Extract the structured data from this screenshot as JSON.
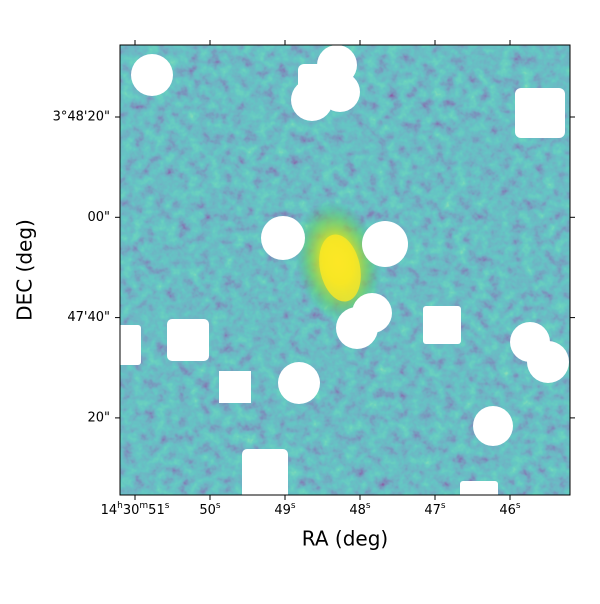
{
  "chart_data": {
    "type": "image",
    "xlabel": "RA (deg)",
    "ylabel": "DEC (deg)",
    "xtick_labels": [
      "14h30m51s",
      "50s",
      "49s",
      "48s",
      "47s",
      "46s"
    ],
    "ytick_labels": [
      "3°48'20\"",
      "00\"",
      "47'40\"",
      "20\""
    ]
  }
}
